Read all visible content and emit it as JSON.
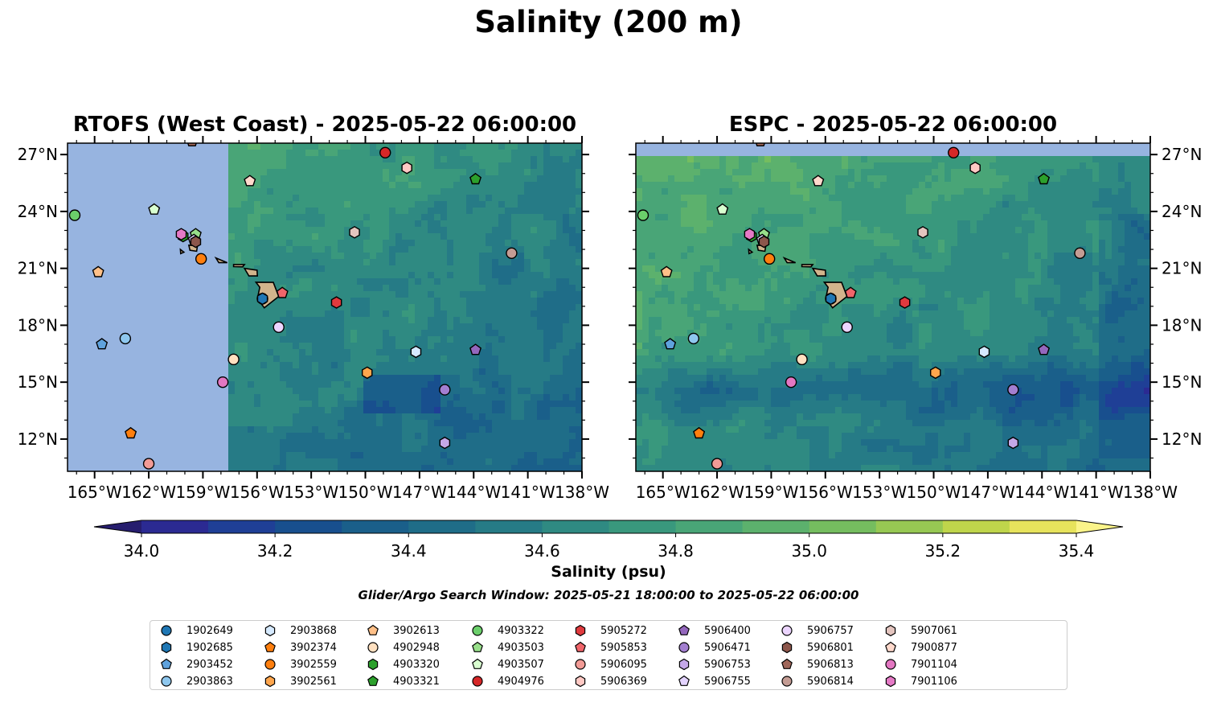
{
  "figure": {
    "title": "Salinity (200 m)",
    "panels": [
      {
        "title": "RTOFS (West Coast) - 2025-05-22 06:00:00"
      },
      {
        "title": "ESPC - 2025-05-22 06:00:00"
      }
    ],
    "lon_ticks": [
      "165°W",
      "162°W",
      "159°W",
      "156°W",
      "153°W",
      "150°W",
      "147°W",
      "144°W",
      "141°W",
      "138°W"
    ],
    "lat_ticks": [
      "27°N",
      "24°N",
      "21°N",
      "18°N",
      "15°N",
      "12°N"
    ],
    "colorbar": {
      "label": "Salinity (psu)",
      "ticks": [
        "34.0",
        "34.2",
        "34.4",
        "34.6",
        "34.8",
        "35.0",
        "35.2",
        "35.4"
      ],
      "colors": [
        "#261d6e",
        "#2b2a92",
        "#1f3f96",
        "#184f8e",
        "#1a5f8a",
        "#1f6d88",
        "#267b86",
        "#2f8a82",
        "#39987d",
        "#49a577",
        "#5cb16d",
        "#75bd5f",
        "#97c853",
        "#bfd54b",
        "#e7e35c",
        "#fbf48a"
      ]
    },
    "search_window": "Glider/Argo Search Window: 2025-05-21 18:00:00 to 2025-05-22 06:00:00"
  },
  "chart_data": {
    "type": "map",
    "variable": "Salinity",
    "units": "psu",
    "depth": "200 m",
    "lon_range": [
      -166.5,
      -138
    ],
    "lat_range": [
      10.3,
      27.6
    ],
    "color_range": [
      34.0,
      35.4
    ],
    "color_step": 0.1,
    "colormap": "haline",
    "land_color": "#d2b48c",
    "rtofs_nodata_lon_max": -157.5,
    "platforms": [
      {
        "id": "1902649",
        "marker": "circle",
        "color": "#1f77b4",
        "lon": -155.7,
        "lat": 19.4
      },
      {
        "id": "1902685",
        "marker": "hexagon",
        "color": "#1f77b4",
        "lon": -155.7,
        "lat": 19.4
      },
      {
        "id": "2903452",
        "marker": "pentagon",
        "color": "#5fa2dd",
        "lon": -164.6,
        "lat": 17.0
      },
      {
        "id": "2903863",
        "marker": "circle",
        "color": "#8ec7ee",
        "lon": -163.3,
        "lat": 17.3
      },
      {
        "id": "2903868",
        "marker": "hexagon",
        "color": "#d6eaff",
        "lon": -147.2,
        "lat": 16.6
      },
      {
        "id": "3902374",
        "marker": "pentagon",
        "color": "#ff7f0e",
        "lon": -163.0,
        "lat": 12.3
      },
      {
        "id": "3902559",
        "marker": "circle",
        "color": "#ff7f0e",
        "lon": -159.1,
        "lat": 21.5
      },
      {
        "id": "3902561",
        "marker": "hexagon",
        "color": "#ffa64d",
        "lon": -149.9,
        "lat": 15.5
      },
      {
        "id": "3902613",
        "marker": "pentagon",
        "color": "#ffc088",
        "lon": -164.8,
        "lat": 20.8
      },
      {
        "id": "4902948",
        "marker": "circle",
        "color": "#ffe0c0",
        "lon": -157.3,
        "lat": 16.2
      },
      {
        "id": "4903320",
        "marker": "hexagon",
        "color": "#2ca02c",
        "lon": -160.1,
        "lat": 22.7
      },
      {
        "id": "4903321",
        "marker": "pentagon",
        "color": "#2ca02c",
        "lon": -143.9,
        "lat": 25.7
      },
      {
        "id": "4903322",
        "marker": "circle",
        "color": "#6bcf6b",
        "lon": -166.1,
        "lat": 23.8
      },
      {
        "id": "4903503",
        "marker": "pentagon",
        "color": "#98df8a",
        "lon": -159.4,
        "lat": 22.8
      },
      {
        "id": "4903507",
        "marker": "pentagon",
        "color": "#d9ffd0",
        "lon": -161.7,
        "lat": 24.1
      },
      {
        "id": "4904976",
        "marker": "circle",
        "color": "#d62728",
        "lon": -148.9,
        "lat": 27.1
      },
      {
        "id": "5905272",
        "marker": "hexagon",
        "color": "#e03a3e",
        "lon": -151.6,
        "lat": 19.2
      },
      {
        "id": "5905853",
        "marker": "pentagon",
        "color": "#f0656a",
        "lon": -154.6,
        "lat": 19.7
      },
      {
        "id": "5906095",
        "marker": "circle",
        "color": "#f29b96",
        "lon": -162.0,
        "lat": 10.7
      },
      {
        "id": "5906369",
        "marker": "hexagon",
        "color": "#ffc9c4",
        "lon": -147.7,
        "lat": 26.3
      },
      {
        "id": "5906400",
        "marker": "pentagon",
        "color": "#9467bd",
        "lon": -143.9,
        "lat": 16.7
      },
      {
        "id": "5906471",
        "marker": "circle",
        "color": "#a37fd0",
        "lon": -145.6,
        "lat": 14.6
      },
      {
        "id": "5906753",
        "marker": "hexagon",
        "color": "#c5a8e8",
        "lon": -145.6,
        "lat": 11.8
      },
      {
        "id": "5906755",
        "marker": "pentagon",
        "color": "#e4d4ff",
        "lon": -159.5,
        "lat": 22.5
      },
      {
        "id": "5906757",
        "marker": "circle",
        "color": "#ecd5ff",
        "lon": -154.8,
        "lat": 17.9
      },
      {
        "id": "5906801",
        "marker": "hexagon",
        "color": "#8c564b",
        "lon": -159.4,
        "lat": 22.4
      },
      {
        "id": "5906813",
        "marker": "pentagon",
        "color": "#a0675a",
        "lon": -159.6,
        "lat": 27.7
      },
      {
        "id": "5906814",
        "marker": "circle",
        "color": "#c49c94",
        "lon": -141.9,
        "lat": 21.8
      },
      {
        "id": "5907061",
        "marker": "hexagon",
        "color": "#e4c5bf",
        "lon": -150.6,
        "lat": 22.9
      },
      {
        "id": "7900877",
        "marker": "pentagon",
        "color": "#ffd9cc",
        "lon": -156.4,
        "lat": 25.6
      },
      {
        "id": "7901104",
        "marker": "circle",
        "color": "#e377c2",
        "lon": -157.9,
        "lat": 15.0
      },
      {
        "id": "7901106",
        "marker": "hexagon",
        "color": "#e57ac6",
        "lon": -160.2,
        "lat": 22.8
      }
    ]
  }
}
